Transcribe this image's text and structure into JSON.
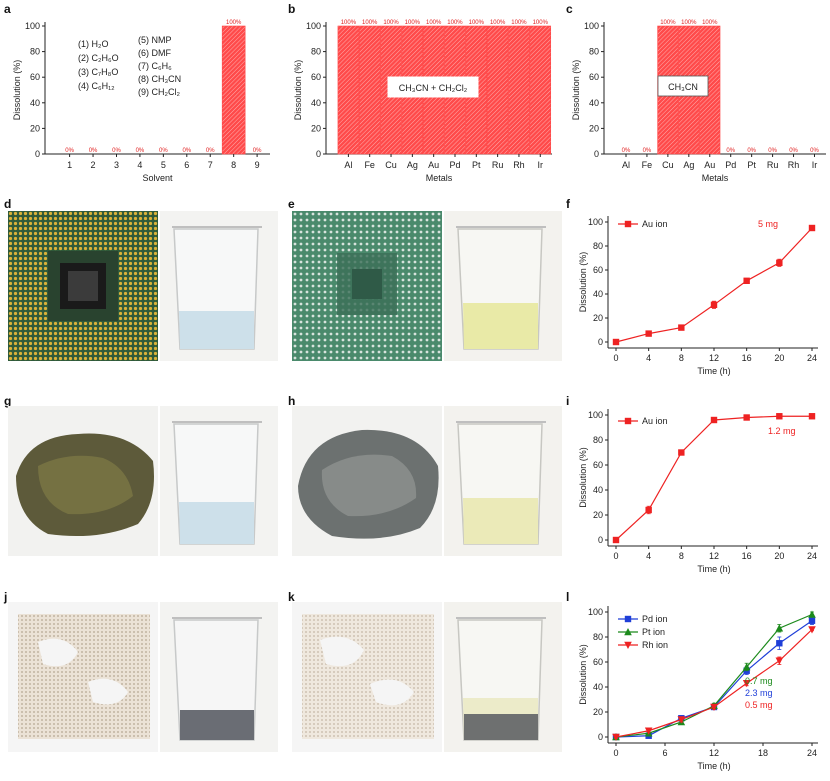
{
  "panel_letters": [
    "a",
    "b",
    "c",
    "d",
    "e",
    "f",
    "g",
    "h",
    "i",
    "j",
    "k",
    "l"
  ],
  "colors": {
    "bar_fill": "#ff4a4a",
    "bar_hatch": "#ffffff",
    "red": "#ee2222",
    "blue": "#1f3fd8",
    "green": "#1c8a1c",
    "axis": "#222222"
  },
  "photos": {
    "d_left": "cpu-gold-pins-icon",
    "d_right": "beaker-clear-liquid-icon",
    "e_left": "cpu-stripped-icon",
    "e_right": "beaker-yellow-liquid-icon",
    "g_left": "ore-rock-icon",
    "g_right": "beaker-clear-liquid-icon",
    "h_left": "ore-rock-leached-icon",
    "h_right": "beaker-yellow-liquid-icon",
    "j_left": "catalyst-honeycomb-icon",
    "j_right": "beaker-powder-icon",
    "k_left": "catalyst-honeycomb-leached-icon",
    "k_right": "beaker-powder-yellow-icon"
  },
  "chart_data": [
    {
      "panel": "a",
      "type": "bar",
      "categories": [
        "1",
        "2",
        "3",
        "4",
        "5",
        "6",
        "7",
        "8",
        "9"
      ],
      "values": [
        0,
        0,
        0,
        0,
        0,
        0,
        0,
        100,
        0
      ],
      "value_labels": [
        "0%",
        "0%",
        "0%",
        "0%",
        "0%",
        "0%",
        "0%",
        "100%",
        "0%"
      ],
      "xlabel": "Solvent",
      "ylabel": "Dissolution (%)",
      "ylim": [
        0,
        100
      ],
      "yticks": [
        "0",
        "20",
        "40",
        "60",
        "80",
        "100"
      ],
      "legend_col1": [
        "(1) H₂O",
        "(2) C₂H₆O",
        "(3) C₇H₈O",
        "(4) C₆H₁₂"
      ],
      "legend_col2": [
        "(5) NMP",
        "(6) DMF",
        "(7) C₆H₆",
        "(8) CH₃CN",
        "(9) CH₂Cl₂"
      ]
    },
    {
      "panel": "b",
      "type": "bar",
      "categories": [
        "Al",
        "Fe",
        "Cu",
        "Ag",
        "Au",
        "Pd",
        "Pt",
        "Ru",
        "Rh",
        "Ir"
      ],
      "values": [
        100,
        100,
        100,
        100,
        100,
        100,
        100,
        100,
        100,
        100
      ],
      "value_labels": [
        "100%",
        "100%",
        "100%",
        "100%",
        "100%",
        "100%",
        "100%",
        "100%",
        "100%",
        "100%"
      ],
      "xlabel": "Metals",
      "ylabel": "Dissolution (%)",
      "ylim": [
        0,
        100
      ],
      "yticks": [
        "0",
        "20",
        "40",
        "60",
        "80",
        "100"
      ],
      "annotation": "CH₃CN + CH₂Cl₂"
    },
    {
      "panel": "c",
      "type": "bar",
      "categories": [
        "Al",
        "Fe",
        "Cu",
        "Ag",
        "Au",
        "Pd",
        "Pt",
        "Ru",
        "Rh",
        "Ir"
      ],
      "values": [
        0,
        0,
        100,
        100,
        100,
        0,
        0,
        0,
        0,
        0
      ],
      "value_labels": [
        "0%",
        "0%",
        "100%",
        "100%",
        "100%",
        "0%",
        "0%",
        "0%",
        "0%",
        "0%"
      ],
      "xlabel": "Metals",
      "ylabel": "Dissolution (%)",
      "ylim": [
        0,
        100
      ],
      "yticks": [
        "0",
        "20",
        "40",
        "60",
        "80",
        "100"
      ],
      "annotation": "CH₃CN"
    },
    {
      "panel": "f",
      "type": "line",
      "x": [
        0,
        4,
        8,
        12,
        16,
        20,
        24
      ],
      "series": [
        {
          "name": "Au ion",
          "values": [
            0,
            7,
            12,
            31,
            51,
            66,
            95
          ],
          "error": [
            1,
            1,
            2,
            3,
            2,
            3,
            1
          ],
          "color": "#ee2222",
          "marker": "square"
        }
      ],
      "xlabel": "Time (h)",
      "ylabel": "Dissolution (%)",
      "xlim": [
        0,
        24
      ],
      "ylim": [
        0,
        100
      ],
      "xticks": [
        "0",
        "4",
        "8",
        "12",
        "16",
        "20",
        "24"
      ],
      "yticks": [
        "0",
        "20",
        "40",
        "60",
        "80",
        "100"
      ],
      "notes": [
        {
          "text": "5 mg",
          "color": "#ee2222"
        }
      ]
    },
    {
      "panel": "i",
      "type": "line",
      "x": [
        0,
        4,
        8,
        12,
        16,
        20,
        24
      ],
      "series": [
        {
          "name": "Au ion",
          "values": [
            0,
            24,
            70,
            96,
            98,
            99,
            99
          ],
          "error": [
            1,
            3,
            2,
            2,
            1,
            1,
            1
          ],
          "color": "#ee2222",
          "marker": "square"
        }
      ],
      "xlabel": "Time (h)",
      "ylabel": "Dissolution (%)",
      "xlim": [
        0,
        24
      ],
      "ylim": [
        0,
        100
      ],
      "xticks": [
        "0",
        "4",
        "8",
        "12",
        "16",
        "20",
        "24"
      ],
      "yticks": [
        "0",
        "20",
        "40",
        "60",
        "80",
        "100"
      ],
      "notes": [
        {
          "text": "1.2 mg",
          "color": "#ee2222"
        }
      ]
    },
    {
      "panel": "l",
      "type": "line",
      "x": [
        0,
        4,
        8,
        12,
        16,
        20,
        24
      ],
      "series": [
        {
          "name": "Pd ion",
          "values": [
            0,
            1,
            15,
            24,
            53,
            75,
            93
          ],
          "error": [
            1,
            1,
            2,
            2,
            3,
            5,
            3
          ],
          "color": "#1f3fd8",
          "marker": "square"
        },
        {
          "name": "Pt ion",
          "values": [
            0,
            3,
            12,
            25,
            56,
            87,
            98
          ],
          "error": [
            1,
            1,
            2,
            2,
            3,
            3,
            2
          ],
          "color": "#1c8a1c",
          "marker": "triangle-up"
        },
        {
          "name": "Rh ion",
          "values": [
            0,
            5,
            14,
            24,
            43,
            61,
            86
          ],
          "error": [
            1,
            1,
            2,
            2,
            2,
            3,
            1
          ],
          "color": "#ee2222",
          "marker": "triangle-down"
        }
      ],
      "xlabel": "Time (h)",
      "ylabel": "Dissolution (%)",
      "xlim": [
        0,
        24
      ],
      "ylim": [
        0,
        100
      ],
      "xticks": [
        "0",
        "6",
        "12",
        "18",
        "24"
      ],
      "yticks": [
        "0",
        "20",
        "40",
        "60",
        "80",
        "100"
      ],
      "notes": [
        {
          "text": "0.7 mg",
          "color": "#1c8a1c"
        },
        {
          "text": "2.3 mg",
          "color": "#1f3fd8"
        },
        {
          "text": "0.5 mg",
          "color": "#ee2222"
        }
      ]
    }
  ]
}
